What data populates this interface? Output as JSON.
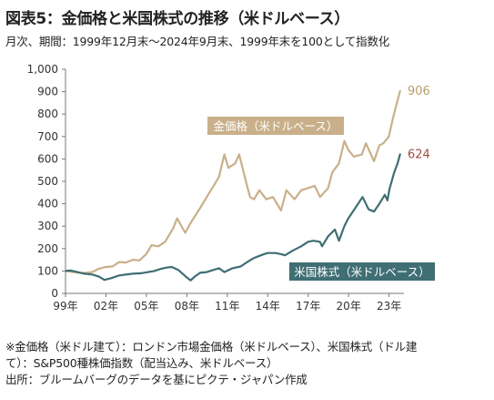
{
  "figure": {
    "title": "図表5：金価格と米国株式の推移（米ドルベース）",
    "subtitle": "月次、期間：1999年12月末～2024年9月末、1999年末を100として指数化",
    "notes": [
      "※金価格（米ドル建て）：ロンドン市場金価格（米ドルベース）、米国株式（ドル建",
      "て）：S&P500種株価指数（配当込み、米ドルベース）",
      "出所：ブルームバーグのデータを基にピクテ・ジャパン作成"
    ]
  },
  "chart_data": {
    "type": "line",
    "ylim": [
      0,
      1000
    ],
    "xlim": [
      1999.917,
      2024.75
    ],
    "y_ticks": [
      "0",
      "100",
      "200",
      "300",
      "400",
      "500",
      "600",
      "700",
      "800",
      "900",
      "1,000"
    ],
    "x_ticks": [
      "99年",
      "02年",
      "05年",
      "08年",
      "11年",
      "14年",
      "17年",
      "20年",
      "23年"
    ],
    "series": [
      {
        "name": "金価格（米ドルベース）",
        "color": "#c9b08a",
        "end_label": "906",
        "points": [
          [
            1999.92,
            100
          ],
          [
            2000.3,
            97
          ],
          [
            2000.8,
            93
          ],
          [
            2001.3,
            91
          ],
          [
            2001.9,
            95
          ],
          [
            2002.4,
            110
          ],
          [
            2002.9,
            118
          ],
          [
            2003.4,
            120
          ],
          [
            2003.9,
            140
          ],
          [
            2004.4,
            138
          ],
          [
            2004.9,
            150
          ],
          [
            2005.4,
            147
          ],
          [
            2005.9,
            175
          ],
          [
            2006.3,
            215
          ],
          [
            2006.8,
            210
          ],
          [
            2007.3,
            230
          ],
          [
            2007.9,
            290
          ],
          [
            2008.2,
            335
          ],
          [
            2008.8,
            270
          ],
          [
            2009.2,
            315
          ],
          [
            2009.9,
            380
          ],
          [
            2010.4,
            430
          ],
          [
            2010.9,
            480
          ],
          [
            2011.3,
            520
          ],
          [
            2011.7,
            620
          ],
          [
            2012.0,
            560
          ],
          [
            2012.5,
            580
          ],
          [
            2012.8,
            620
          ],
          [
            2013.3,
            500
          ],
          [
            2013.6,
            430
          ],
          [
            2013.9,
            420
          ],
          [
            2014.3,
            460
          ],
          [
            2014.8,
            420
          ],
          [
            2015.3,
            430
          ],
          [
            2015.9,
            370
          ],
          [
            2016.3,
            460
          ],
          [
            2016.9,
            420
          ],
          [
            2017.4,
            460
          ],
          [
            2017.9,
            470
          ],
          [
            2018.4,
            480
          ],
          [
            2018.8,
            430
          ],
          [
            2019.4,
            470
          ],
          [
            2019.7,
            540
          ],
          [
            2020.2,
            580
          ],
          [
            2020.6,
            680
          ],
          [
            2020.9,
            640
          ],
          [
            2021.3,
            610
          ],
          [
            2021.9,
            620
          ],
          [
            2022.2,
            670
          ],
          [
            2022.8,
            590
          ],
          [
            2023.2,
            660
          ],
          [
            2023.5,
            670
          ],
          [
            2023.9,
            700
          ],
          [
            2024.2,
            780
          ],
          [
            2024.5,
            850
          ],
          [
            2024.75,
            906
          ]
        ]
      },
      {
        "name": "米国株式（米ドルベース）",
        "color": "#3f6e73",
        "end_label": "624",
        "points": [
          [
            1999.92,
            100
          ],
          [
            2000.3,
            102
          ],
          [
            2000.8,
            95
          ],
          [
            2001.3,
            88
          ],
          [
            2001.9,
            84
          ],
          [
            2002.4,
            75
          ],
          [
            2002.8,
            60
          ],
          [
            2003.3,
            68
          ],
          [
            2003.9,
            80
          ],
          [
            2004.5,
            85
          ],
          [
            2004.9,
            88
          ],
          [
            2005.5,
            90
          ],
          [
            2005.9,
            94
          ],
          [
            2006.5,
            100
          ],
          [
            2006.9,
            108
          ],
          [
            2007.4,
            115
          ],
          [
            2007.8,
            118
          ],
          [
            2008.3,
            104
          ],
          [
            2008.9,
            72
          ],
          [
            2009.2,
            58
          ],
          [
            2009.5,
            75
          ],
          [
            2009.9,
            92
          ],
          [
            2010.4,
            95
          ],
          [
            2010.9,
            105
          ],
          [
            2011.3,
            112
          ],
          [
            2011.7,
            95
          ],
          [
            2012.3,
            112
          ],
          [
            2012.9,
            120
          ],
          [
            2013.4,
            140
          ],
          [
            2013.9,
            158
          ],
          [
            2014.5,
            172
          ],
          [
            2014.9,
            180
          ],
          [
            2015.5,
            180
          ],
          [
            2015.9,
            175
          ],
          [
            2016.2,
            170
          ],
          [
            2016.8,
            192
          ],
          [
            2017.4,
            210
          ],
          [
            2017.9,
            230
          ],
          [
            2018.3,
            235
          ],
          [
            2018.8,
            230
          ],
          [
            2018.95,
            210
          ],
          [
            2019.4,
            255
          ],
          [
            2019.9,
            285
          ],
          [
            2020.2,
            235
          ],
          [
            2020.6,
            300
          ],
          [
            2020.9,
            335
          ],
          [
            2021.4,
            380
          ],
          [
            2021.95,
            430
          ],
          [
            2022.4,
            375
          ],
          [
            2022.8,
            365
          ],
          [
            2023.2,
            400
          ],
          [
            2023.6,
            440
          ],
          [
            2023.8,
            415
          ],
          [
            2023.95,
            465
          ],
          [
            2024.3,
            540
          ],
          [
            2024.55,
            580
          ],
          [
            2024.75,
            624
          ]
        ]
      }
    ],
    "annotations": [
      {
        "text": "金価格（米ドルベース）",
        "style": "filled-label",
        "color": "#c9b08a"
      },
      {
        "text": "米国株式（米ドルベース）",
        "style": "filled-label",
        "color": "#3f6e73"
      }
    ]
  }
}
